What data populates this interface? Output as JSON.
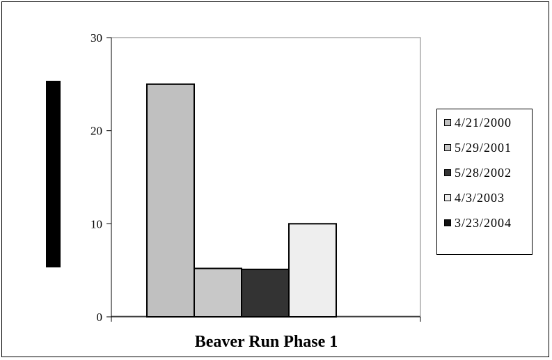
{
  "chart_data": {
    "type": "bar",
    "categories": [
      "Beaver Run Phase 1"
    ],
    "xlabel": "Beaver Run Phase 1",
    "ylabel": "",
    "ylim": [
      0,
      30
    ],
    "yticks": [
      0,
      10,
      20,
      30
    ],
    "grid": false,
    "legend_position": "right",
    "series": [
      {
        "name": "4/21/2000",
        "values": [
          25
        ],
        "color": "#c0c0c0"
      },
      {
        "name": "5/29/2001",
        "values": [
          5.2
        ],
        "color": "#c8c8c8"
      },
      {
        "name": "5/28/2002",
        "values": [
          5.1
        ],
        "color": "#333333"
      },
      {
        "name": "4/3/2003",
        "values": [
          10
        ],
        "color": "#eeeeee"
      },
      {
        "name": "3/23/2004",
        "values": [
          0
        ],
        "color": "#111111"
      }
    ]
  }
}
